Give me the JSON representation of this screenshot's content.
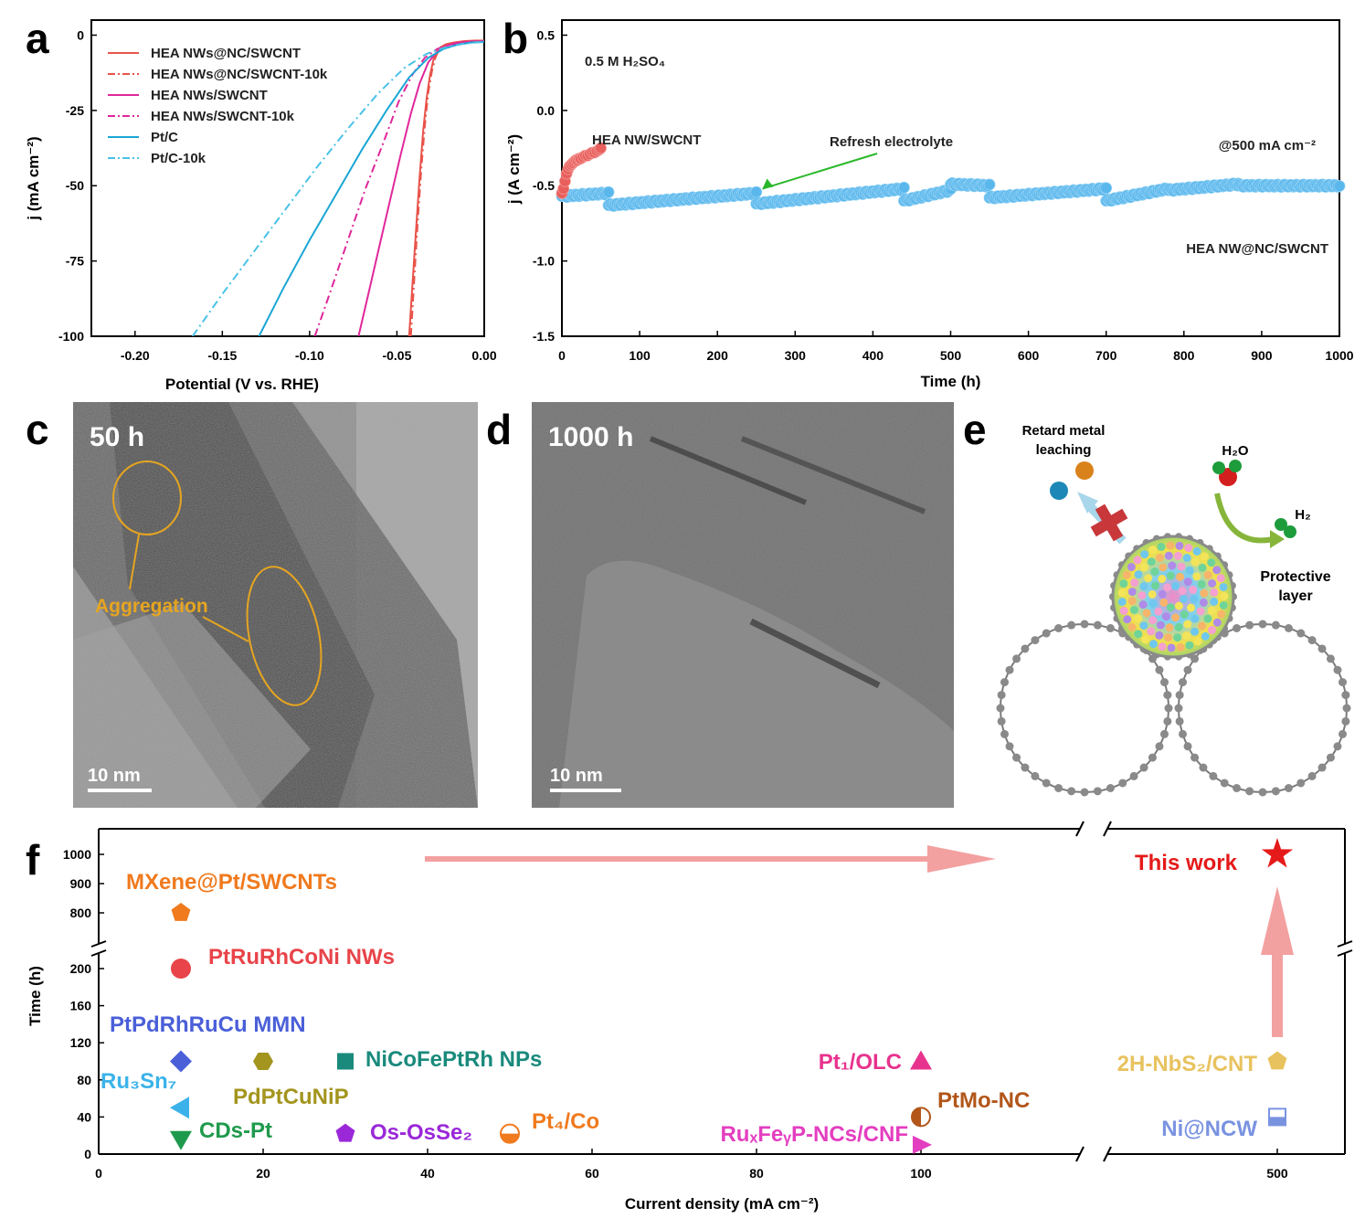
{
  "panels": {
    "a": "a",
    "b": "b",
    "c": "c",
    "d": "d",
    "e": "e",
    "f": "f"
  },
  "chart_data": [
    {
      "panel": "a",
      "type": "line",
      "xlabel": "Potential (V vs. RHE)",
      "ylabel": "j (mA cm⁻²)",
      "xlim": [
        -0.225,
        0.0
      ],
      "ylim": [
        -100,
        5
      ],
      "x_ticks": [
        -0.2,
        -0.15,
        -0.1,
        -0.05,
        0.0
      ],
      "x_tick_labels": [
        "-0.20",
        "-0.15",
        "-0.10",
        "-0.05",
        "0.00"
      ],
      "y_ticks": [
        0,
        -25,
        -50,
        -75,
        -100
      ],
      "y_tick_labels": [
        "0",
        "-25",
        "-50",
        "-75",
        "-100"
      ],
      "series": [
        {
          "name": "HEA NWs@NC/SWCNT",
          "color": "#e8534a",
          "dash": "solid",
          "x": [
            -0.043,
            -0.041,
            -0.039,
            -0.037,
            -0.035,
            -0.033,
            -0.031,
            -0.029,
            -0.027,
            -0.025,
            -0.022,
            -0.018,
            -0.012,
            -0.005,
            0.0
          ],
          "y": [
            -100,
            -82,
            -64,
            -47,
            -32,
            -21,
            -13,
            -8,
            -5.5,
            -4,
            -3,
            -2.5,
            -2,
            -1.8,
            -1.8
          ]
        },
        {
          "name": "HEA NWs@NC/SWCNT-10k",
          "color": "#e8534a",
          "dash": "dashdot",
          "x": [
            -0.042,
            -0.04,
            -0.038,
            -0.036,
            -0.034,
            -0.032,
            -0.03,
            -0.028,
            -0.026,
            -0.023,
            -0.019,
            -0.013,
            -0.006,
            0.0
          ],
          "y": [
            -100,
            -80,
            -61,
            -44,
            -30,
            -19,
            -12,
            -7.5,
            -5,
            -3.6,
            -2.8,
            -2.3,
            -2,
            -2
          ]
        },
        {
          "name": "HEA NWs/SWCNT",
          "color": "#e0279b",
          "dash": "solid",
          "x": [
            -0.072,
            -0.066,
            -0.06,
            -0.054,
            -0.048,
            -0.042,
            -0.037,
            -0.032,
            -0.027,
            -0.022,
            -0.016,
            -0.008,
            0.0
          ],
          "y": [
            -100,
            -85,
            -70,
            -55,
            -40,
            -26,
            -16,
            -9,
            -5.5,
            -3.6,
            -2.6,
            -2.1,
            -2
          ]
        },
        {
          "name": "HEA NWs/SWCNT-10k",
          "color": "#e0279b",
          "dash": "dashdot",
          "x": [
            -0.097,
            -0.088,
            -0.078,
            -0.068,
            -0.058,
            -0.049,
            -0.041,
            -0.034,
            -0.027,
            -0.02,
            -0.012,
            -0.005,
            0.0
          ],
          "y": [
            -100,
            -85,
            -68,
            -51,
            -36,
            -22,
            -13,
            -7.5,
            -4.6,
            -3.2,
            -2.5,
            -2.2,
            -2
          ]
        },
        {
          "name": "Pt/C",
          "color": "#1aa6d4",
          "dash": "solid",
          "x": [
            -0.129,
            -0.115,
            -0.1,
            -0.085,
            -0.07,
            -0.056,
            -0.043,
            -0.032,
            -0.023,
            -0.015,
            -0.007,
            0.0
          ],
          "y": [
            -100,
            -84,
            -68,
            -53,
            -38,
            -25,
            -14,
            -7.5,
            -4.5,
            -3.1,
            -2.4,
            -2.2
          ]
        },
        {
          "name": "Pt/C-10k",
          "color": "#49c2e6",
          "dash": "dashdot",
          "x": [
            -0.167,
            -0.15,
            -0.132,
            -0.114,
            -0.096,
            -0.078,
            -0.061,
            -0.046,
            -0.033,
            -0.022,
            -0.012,
            -0.004,
            0.0
          ],
          "y": [
            -100,
            -86,
            -72,
            -58,
            -44,
            -31,
            -19.5,
            -11,
            -6.2,
            -4,
            -2.9,
            -2.4,
            -2.3
          ]
        }
      ]
    },
    {
      "panel": "b",
      "type": "scatter",
      "xlabel": "Time (h)",
      "ylabel": "j (A cm⁻²)",
      "xlim": [
        0,
        1000
      ],
      "ylim": [
        -1.5,
        0.6
      ],
      "x_ticks": [
        0,
        100,
        200,
        300,
        400,
        500,
        600,
        700,
        800,
        900,
        1000
      ],
      "x_tick_labels": [
        "0",
        "100",
        "200",
        "300",
        "400",
        "500",
        "600",
        "700",
        "800",
        "900",
        "1000"
      ],
      "y_ticks": [
        0.5,
        0.0,
        -0.5,
        -1.0,
        -1.5
      ],
      "y_tick_labels": [
        "0.5",
        "0.0",
        "-0.5",
        "-1.0",
        "-1.5"
      ],
      "annotations": {
        "electrolyte": "0.5 M H₂SO₄",
        "current": "@500 mA cm⁻²",
        "refresh": "Refresh electrolyte",
        "short_label": "HEA NW/SWCNT",
        "long_label": "HEA NW@NC/SWCNT"
      },
      "series": [
        {
          "name": "HEA NW/SWCNT",
          "color": "#e85f5c",
          "x": [
            0,
            2,
            4,
            6,
            8,
            10,
            12,
            14,
            16,
            18,
            20,
            22,
            24,
            27,
            30,
            33,
            36,
            39,
            42,
            45,
            48,
            50
          ],
          "y": [
            -0.55,
            -0.52,
            -0.47,
            -0.42,
            -0.39,
            -0.37,
            -0.36,
            -0.35,
            -0.34,
            -0.33,
            -0.33,
            -0.32,
            -0.32,
            -0.31,
            -0.3,
            -0.3,
            -0.29,
            -0.28,
            -0.28,
            -0.27,
            -0.26,
            -0.25
          ]
        },
        {
          "name": "HEA NW@NC/SWCNT",
          "color": "#5ab7ec",
          "segments": [
            {
              "x": [
                0,
                60
              ],
              "y": [
                -0.57,
                -0.55
              ]
            },
            {
              "x": [
                60,
                250
              ],
              "y": [
                -0.63,
                -0.55
              ]
            },
            {
              "x": [
                250,
                440
              ],
              "y": [
                -0.62,
                -0.52
              ]
            },
            {
              "x": [
                440,
                500
              ],
              "y": [
                -0.6,
                -0.53
              ]
            },
            {
              "x": [
                500,
                550
              ],
              "y": [
                -0.49,
                -0.5
              ]
            },
            {
              "x": [
                550,
                700
              ],
              "y": [
                -0.58,
                -0.52
              ]
            },
            {
              "x": [
                700,
                780
              ],
              "y": [
                -0.6,
                -0.52
              ]
            },
            {
              "x": [
                780,
                870
              ],
              "y": [
                -0.53,
                -0.49
              ]
            },
            {
              "x": [
                870,
                1000
              ],
              "y": [
                -0.5,
                -0.5
              ]
            }
          ]
        }
      ]
    },
    {
      "panel": "f",
      "type": "scatter",
      "xlabel": "Current density (mA cm⁻²)",
      "ylabel": "Time (h)",
      "x_tick_labels": [
        "0",
        "20",
        "40",
        "60",
        "80",
        "100",
        "500"
      ],
      "y_tick_labels_lower": [
        "0",
        "40",
        "80",
        "120",
        "160",
        "200"
      ],
      "y_tick_labels_upper": [
        "800",
        "900",
        "1000"
      ],
      "points": [
        {
          "label": "MXene@Pt/SWCNTs",
          "x": 10,
          "y": 800,
          "marker": "pentagon",
          "color": "#f07a1e"
        },
        {
          "label": "PtRuRhCoNi NWs",
          "x": 10,
          "y": 200,
          "marker": "circle",
          "color": "#e8444a"
        },
        {
          "label": "PtPdRhRuCu MMN",
          "x": 10,
          "y": 100,
          "marker": "diamond",
          "color": "#4a5fd8"
        },
        {
          "label": "Ru₃Sn₇",
          "x": 10,
          "y": 50,
          "marker": "triangle-left",
          "color": "#3bb3ea"
        },
        {
          "label": "CDs-Pt",
          "x": 10,
          "y": 16,
          "marker": "triangle-down",
          "color": "#1f9a4c"
        },
        {
          "label": "PdPtCuNiP",
          "x": 20,
          "y": 100,
          "marker": "hexagon",
          "color": "#a3951e"
        },
        {
          "label": "NiCoFePtRh  NPs",
          "x": 30,
          "y": 100,
          "marker": "square",
          "color": "#1a8a7c"
        },
        {
          "label": "Os-OsSe₂",
          "x": 30,
          "y": 22,
          "marker": "pentagon",
          "color": "#9a28d8"
        },
        {
          "label": "Pt₄/Co",
          "x": 50,
          "y": 22,
          "marker": "half-circle",
          "color": "#f07a1e"
        },
        {
          "label": "Pt₁/OLC",
          "x": 100,
          "y": 100,
          "marker": "triangle-up",
          "color": "#e8338e"
        },
        {
          "label": "PtMo-NC",
          "x": 100,
          "y": 40,
          "marker": "half-circle-v",
          "color": "#b2561a"
        },
        {
          "label": "RuₓFeᵧP-NCs/CNF",
          "x": 100,
          "y": 10,
          "marker": "triangle-right",
          "color": "#e43ec0"
        },
        {
          "label": "2H-NbS₂/CNT",
          "x": 500,
          "y": 100,
          "marker": "pentagon",
          "color": "#e8c25e"
        },
        {
          "label": "Ni@NCW",
          "x": 500,
          "y": 40,
          "marker": "half-square",
          "color": "#7a93e0"
        },
        {
          "label": "This work",
          "x": 500,
          "y": 1000,
          "marker": "star",
          "color": "#e51a1a"
        }
      ]
    }
  ],
  "images": {
    "c": {
      "time": "50 h",
      "scale": "10 nm",
      "annotation": "Aggregation"
    },
    "d": {
      "time": "1000 h",
      "scale": "10 nm"
    }
  },
  "schematic": {
    "retard_line1": "Retard metal",
    "retard_line2": "leaching",
    "h2o": "H₂O",
    "h2": "H₂",
    "protective_line1": "Protective",
    "protective_line2": "layer"
  }
}
